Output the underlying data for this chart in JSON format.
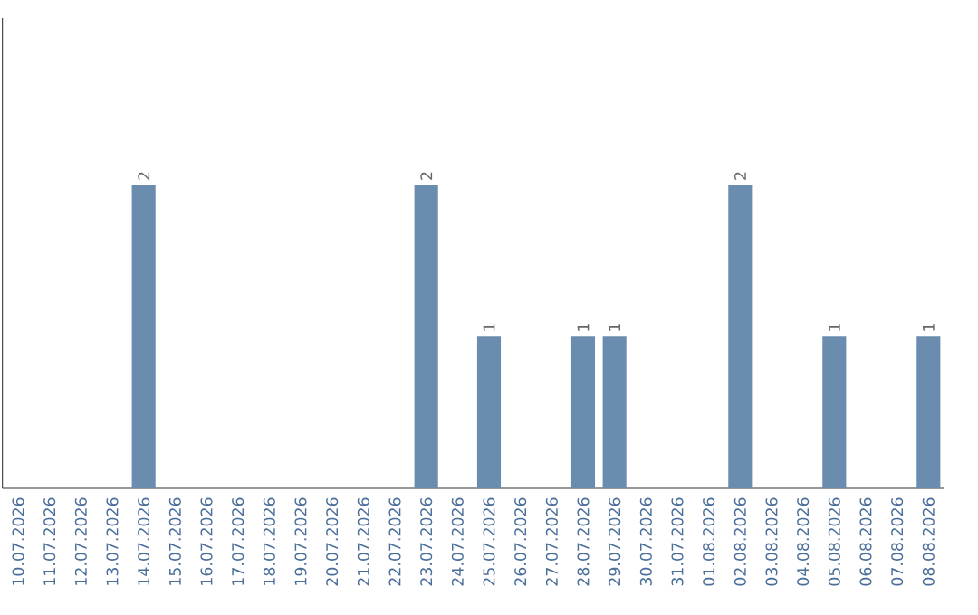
{
  "chart_data": {
    "type": "bar",
    "categories": [
      "10.07.2026",
      "11.07.2026",
      "12.07.2026",
      "13.07.2026",
      "14.07.2026",
      "15.07.2026",
      "16.07.2026",
      "17.07.2026",
      "18.07.2026",
      "19.07.2026",
      "20.07.2026",
      "21.07.2026",
      "22.07.2026",
      "23.07.2026",
      "24.07.2026",
      "25.07.2026",
      "26.07.2026",
      "27.07.2026",
      "28.07.2026",
      "29.07.2026",
      "30.07.2026",
      "31.07.2026",
      "01.08.2026",
      "02.08.2026",
      "03.08.2026",
      "04.08.2026",
      "05.08.2026",
      "06.08.2026",
      "07.08.2026",
      "08.08.2026"
    ],
    "values": [
      0,
      0,
      0,
      0,
      2,
      0,
      0,
      0,
      0,
      0,
      0,
      0,
      0,
      2,
      0,
      1,
      0,
      0,
      1,
      1,
      0,
      0,
      0,
      2,
      0,
      0,
      1,
      0,
      0,
      1
    ],
    "value_labels": [
      null,
      null,
      null,
      null,
      "2",
      null,
      null,
      null,
      null,
      null,
      null,
      null,
      null,
      "2",
      null,
      "1",
      null,
      null,
      "1",
      "1",
      null,
      null,
      null,
      "2",
      null,
      null,
      "1",
      null,
      null,
      "1"
    ],
    "color": "#6a8caf",
    "tick_labels": "x",
    "grid": false
  }
}
